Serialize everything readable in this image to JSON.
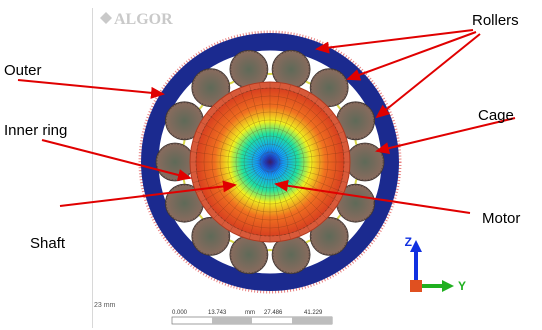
{
  "brand": {
    "logo_text": "ALGOR"
  },
  "labels": {
    "outer": "Outer",
    "inner_ring": "Inner ring",
    "shaft": "Shaft",
    "rollers": "Rollers",
    "cage": "Cage",
    "motor": "Motor"
  },
  "scale_bar": {
    "unit_text": "mm",
    "left_readout": "23 mm",
    "ticks": [
      "0.000",
      "13.743",
      "27.486",
      "41.229"
    ]
  },
  "axes_triad": {
    "z": "Z",
    "y": "Y"
  },
  "colors": {
    "outer_ring": "#1b2a8f",
    "outer_ring_mesh": "#e05050",
    "inner_ring": "#e06040",
    "cage": "#d9d94a",
    "roller": "#6b5a50",
    "arrow": "#e00000",
    "triad_z": "#1030e0",
    "triad_y": "#20b020"
  },
  "roller_count": 14
}
